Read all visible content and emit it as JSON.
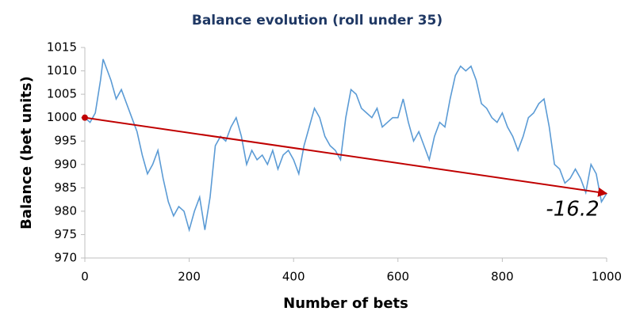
{
  "chart_data": {
    "type": "line",
    "title": "Balance evolution (roll under 35)",
    "xlabel": "Number of bets",
    "ylabel": "Balance (bet units)",
    "xlim": [
      0,
      1000
    ],
    "xticks": [
      0,
      200,
      400,
      600,
      800,
      1000
    ],
    "ylim": [
      970,
      1015
    ],
    "yticks": [
      970,
      975,
      980,
      985,
      990,
      995,
      1000,
      1005,
      1010,
      1015
    ],
    "series": [
      {
        "color": "#5b9bd5",
        "x": [
          0,
          10,
          20,
          30,
          35,
          40,
          50,
          60,
          70,
          80,
          90,
          100,
          110,
          120,
          130,
          140,
          150,
          160,
          170,
          180,
          190,
          200,
          210,
          220,
          230,
          240,
          250,
          260,
          270,
          280,
          290,
          300,
          310,
          320,
          330,
          340,
          350,
          360,
          370,
          380,
          390,
          400,
          410,
          420,
          430,
          440,
          450,
          460,
          470,
          480,
          490,
          500,
          510,
          520,
          530,
          540,
          550,
          560,
          570,
          580,
          590,
          600,
          610,
          620,
          630,
          640,
          650,
          660,
          670,
          680,
          690,
          700,
          710,
          720,
          730,
          740,
          750,
          760,
          770,
          780,
          790,
          800,
          810,
          820,
          830,
          840,
          850,
          860,
          870,
          880,
          890,
          900,
          910,
          920,
          930,
          940,
          950,
          960,
          970,
          980,
          990,
          1000
        ],
        "values": [
          1000,
          999,
          1001,
          1008,
          1012.5,
          1011,
          1008,
          1004,
          1006,
          1003,
          1000,
          997,
          992,
          988,
          990,
          993,
          987,
          982,
          979,
          981,
          980,
          976,
          980,
          983,
          976,
          983,
          994,
          996,
          995,
          998,
          1000,
          996,
          990,
          993,
          991,
          992,
          990,
          993,
          989,
          992,
          993,
          991,
          988,
          994,
          998,
          1002,
          1000,
          996,
          994,
          993,
          991,
          1000,
          1006,
          1005,
          1002,
          1001,
          1000,
          1002,
          998,
          999,
          1000,
          1000,
          1004,
          999,
          995,
          997,
          994,
          991,
          996,
          999,
          998,
          1004,
          1009,
          1011,
          1010,
          1011,
          1008,
          1003,
          1002,
          1000,
          999,
          1001,
          998,
          996,
          993,
          996,
          1000,
          1001,
          1003,
          1004,
          998,
          990,
          989,
          986,
          987,
          989,
          987,
          984,
          990,
          988,
          982,
          983.8
        ]
      },
      {
        "color": "#c00000",
        "x": [
          0,
          1000
        ],
        "values": [
          1000,
          983.8
        ]
      }
    ],
    "annotations": [
      "-16.2"
    ]
  }
}
